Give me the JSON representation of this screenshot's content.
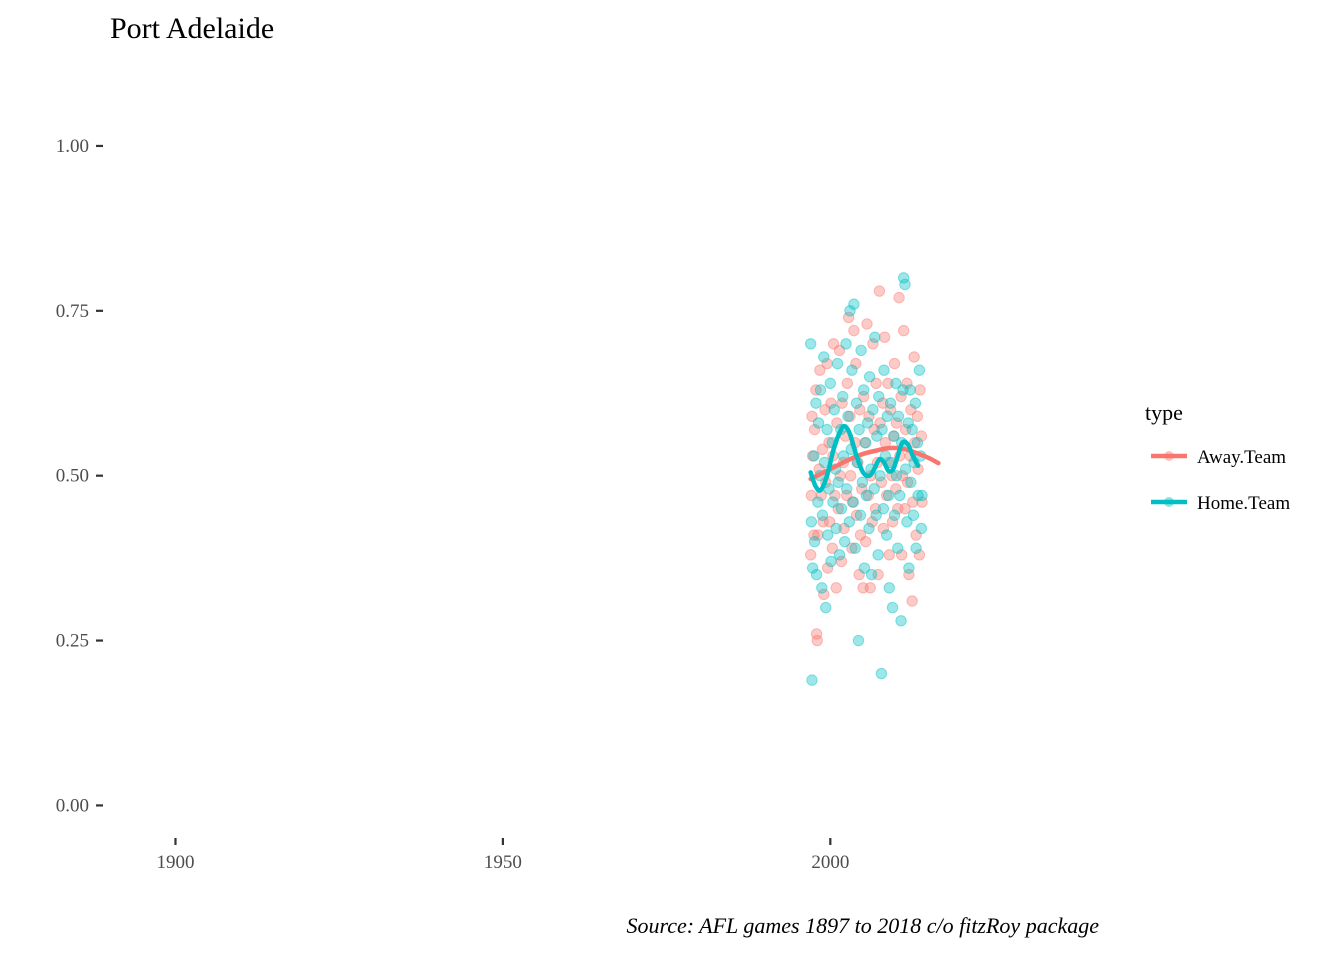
{
  "chart_data": {
    "type": "scatter",
    "title": "Port Adelaide",
    "caption": "Source: AFL games 1897 to 2018 c/o fitzRoy package",
    "xlabel": "",
    "ylabel": "",
    "xlim": [
      1890,
      2045
    ],
    "ylim": [
      -0.06,
      1.1
    ],
    "x_ticks": [
      1900,
      1950,
      2000
    ],
    "x_tick_labels": [
      "1900",
      "1950",
      "2000"
    ],
    "y_ticks": [
      0,
      0.25,
      0.5,
      0.75,
      1.0
    ],
    "y_tick_labels": [
      "0.00",
      "0.25",
      "0.50",
      "0.75",
      "1.00"
    ],
    "grid": false,
    "legend": {
      "title": "type",
      "position": "right"
    },
    "series": [
      {
        "name": "Away.Team",
        "color": "#F8766D",
        "points": [
          [
            1997.0,
            0.38
          ],
          [
            1997.1,
            0.47
          ],
          [
            1997.2,
            0.59
          ],
          [
            1997.3,
            0.53
          ],
          [
            1997.5,
            0.41
          ],
          [
            1997.6,
            0.57
          ],
          [
            1997.8,
            0.63
          ],
          [
            1997.9,
            0.26
          ],
          [
            1998.0,
            0.25
          ],
          [
            1998.1,
            0.41
          ],
          [
            1998.3,
            0.51
          ],
          [
            1998.4,
            0.66
          ],
          [
            1998.6,
            0.47
          ],
          [
            1998.8,
            0.54
          ],
          [
            1998.9,
            0.43
          ],
          [
            1999.0,
            0.32
          ],
          [
            1999.2,
            0.6
          ],
          [
            1999.3,
            0.49
          ],
          [
            1999.5,
            0.67
          ],
          [
            1999.6,
            0.36
          ],
          [
            1999.8,
            0.55
          ],
          [
            1999.9,
            0.43
          ],
          [
            2000.1,
            0.61
          ],
          [
            2000.3,
            0.39
          ],
          [
            2000.4,
            0.53
          ],
          [
            2000.5,
            0.7
          ],
          [
            2000.7,
            0.47
          ],
          [
            2000.9,
            0.33
          ],
          [
            2001.0,
            0.58
          ],
          [
            2001.2,
            0.45
          ],
          [
            2001.4,
            0.69
          ],
          [
            2001.5,
            0.5
          ],
          [
            2001.7,
            0.37
          ],
          [
            2001.8,
            0.61
          ],
          [
            2002.0,
            0.52
          ],
          [
            2002.1,
            0.42
          ],
          [
            2002.3,
            0.56
          ],
          [
            2002.5,
            0.47
          ],
          [
            2002.6,
            0.64
          ],
          [
            2002.8,
            0.74
          ],
          [
            2003.0,
            0.59
          ],
          [
            2003.1,
            0.5
          ],
          [
            2003.3,
            0.39
          ],
          [
            2003.4,
            0.46
          ],
          [
            2003.6,
            0.72
          ],
          [
            2003.8,
            0.55
          ],
          [
            2003.9,
            0.67
          ],
          [
            2004.0,
            0.44
          ],
          [
            2004.2,
            0.52
          ],
          [
            2004.4,
            0.35
          ],
          [
            2004.5,
            0.6
          ],
          [
            2004.6,
            0.41
          ],
          [
            2004.8,
            0.48
          ],
          [
            2005.0,
            0.33
          ],
          [
            2005.1,
            0.62
          ],
          [
            2005.3,
            0.55
          ],
          [
            2005.4,
            0.4
          ],
          [
            2005.6,
            0.73
          ],
          [
            2005.8,
            0.47
          ],
          [
            2005.9,
            0.59
          ],
          [
            2006.1,
            0.33
          ],
          [
            2006.2,
            0.5
          ],
          [
            2006.4,
            0.43
          ],
          [
            2006.5,
            0.7
          ],
          [
            2006.7,
            0.57
          ],
          [
            2006.9,
            0.45
          ],
          [
            2007.0,
            0.64
          ],
          [
            2007.2,
            0.52
          ],
          [
            2007.3,
            0.35
          ],
          [
            2007.5,
            0.78
          ],
          [
            2007.6,
            0.58
          ],
          [
            2007.8,
            0.49
          ],
          [
            2008.0,
            0.61
          ],
          [
            2008.1,
            0.42
          ],
          [
            2008.3,
            0.71
          ],
          [
            2008.4,
            0.55
          ],
          [
            2008.6,
            0.47
          ],
          [
            2008.8,
            0.64
          ],
          [
            2008.9,
            0.52
          ],
          [
            2009.0,
            0.38
          ],
          [
            2009.2,
            0.6
          ],
          [
            2009.4,
            0.5
          ],
          [
            2009.5,
            0.43
          ],
          [
            2009.7,
            0.56
          ],
          [
            2009.8,
            0.67
          ],
          [
            2010.0,
            0.48
          ],
          [
            2010.1,
            0.58
          ],
          [
            2010.3,
            0.45
          ],
          [
            2010.5,
            0.77
          ],
          [
            2010.6,
            0.53
          ],
          [
            2010.8,
            0.62
          ],
          [
            2010.9,
            0.38
          ],
          [
            2011.0,
            0.5
          ],
          [
            2011.2,
            0.72
          ],
          [
            2011.4,
            0.45
          ],
          [
            2011.5,
            0.57
          ],
          [
            2011.7,
            0.64
          ],
          [
            2011.8,
            0.49
          ],
          [
            2012.0,
            0.35
          ],
          [
            2012.2,
            0.53
          ],
          [
            2012.3,
            0.6
          ],
          [
            2012.5,
            0.31
          ],
          [
            2012.6,
            0.46
          ],
          [
            2012.8,
            0.68
          ],
          [
            2012.9,
            0.55
          ],
          [
            2013.1,
            0.41
          ],
          [
            2013.3,
            0.59
          ],
          [
            2013.4,
            0.51
          ],
          [
            2013.6,
            0.38
          ],
          [
            2013.7,
            0.63
          ],
          [
            2013.9,
            0.56
          ],
          [
            2014.0,
            0.46
          ]
        ],
        "smooth": [
          [
            1997,
            0.495
          ],
          [
            1999,
            0.505
          ],
          [
            2001,
            0.515
          ],
          [
            2003,
            0.525
          ],
          [
            2005,
            0.533
          ],
          [
            2007,
            0.538
          ],
          [
            2009,
            0.542
          ],
          [
            2011,
            0.541
          ],
          [
            2013,
            0.535
          ],
          [
            2015,
            0.527
          ],
          [
            2016.5,
            0.519
          ]
        ]
      },
      {
        "name": "Home.Team",
        "color": "#00BFC4",
        "points": [
          [
            1997.0,
            0.7
          ],
          [
            1997.1,
            0.43
          ],
          [
            1997.2,
            0.19
          ],
          [
            1997.3,
            0.36
          ],
          [
            1997.5,
            0.53
          ],
          [
            1997.6,
            0.4
          ],
          [
            1997.8,
            0.61
          ],
          [
            1997.9,
            0.35
          ],
          [
            1998.1,
            0.46
          ],
          [
            1998.2,
            0.58
          ],
          [
            1998.4,
            0.5
          ],
          [
            1998.5,
            0.63
          ],
          [
            1998.7,
            0.33
          ],
          [
            1998.8,
            0.44
          ],
          [
            1999.0,
            0.68
          ],
          [
            1999.1,
            0.52
          ],
          [
            1999.3,
            0.3
          ],
          [
            1999.5,
            0.57
          ],
          [
            1999.6,
            0.41
          ],
          [
            1999.8,
            0.48
          ],
          [
            2000.0,
            0.64
          ],
          [
            2000.1,
            0.37
          ],
          [
            2000.3,
            0.55
          ],
          [
            2000.4,
            0.46
          ],
          [
            2000.6,
            0.6
          ],
          [
            2000.8,
            0.51
          ],
          [
            2000.9,
            0.42
          ],
          [
            2001.1,
            0.67
          ],
          [
            2001.2,
            0.49
          ],
          [
            2001.4,
            0.38
          ],
          [
            2001.6,
            0.57
          ],
          [
            2001.7,
            0.45
          ],
          [
            2001.9,
            0.62
          ],
          [
            2002.0,
            0.53
          ],
          [
            2002.2,
            0.4
          ],
          [
            2002.4,
            0.7
          ],
          [
            2002.5,
            0.48
          ],
          [
            2002.7,
            0.59
          ],
          [
            2002.9,
            0.43
          ],
          [
            2003.0,
            0.75
          ],
          [
            2003.2,
            0.54
          ],
          [
            2003.3,
            0.66
          ],
          [
            2003.5,
            0.46
          ],
          [
            2003.6,
            0.76
          ],
          [
            2003.8,
            0.39
          ],
          [
            2004.0,
            0.61
          ],
          [
            2004.1,
            0.52
          ],
          [
            2004.3,
            0.25
          ],
          [
            2004.4,
            0.57
          ],
          [
            2004.6,
            0.44
          ],
          [
            2004.7,
            0.69
          ],
          [
            2004.9,
            0.49
          ],
          [
            2005.1,
            0.63
          ],
          [
            2005.2,
            0.36
          ],
          [
            2005.4,
            0.55
          ],
          [
            2005.5,
            0.47
          ],
          [
            2005.7,
            0.58
          ],
          [
            2005.9,
            0.42
          ],
          [
            2006.0,
            0.65
          ],
          [
            2006.2,
            0.51
          ],
          [
            2006.3,
            0.35
          ],
          [
            2006.5,
            0.6
          ],
          [
            2006.7,
            0.48
          ],
          [
            2006.8,
            0.71
          ],
          [
            2007.0,
            0.44
          ],
          [
            2007.1,
            0.56
          ],
          [
            2007.3,
            0.38
          ],
          [
            2007.4,
            0.62
          ],
          [
            2007.6,
            0.5
          ],
          [
            2007.8,
            0.2
          ],
          [
            2007.9,
            0.57
          ],
          [
            2008.1,
            0.45
          ],
          [
            2008.2,
            0.66
          ],
          [
            2008.4,
            0.53
          ],
          [
            2008.6,
            0.41
          ],
          [
            2008.7,
            0.59
          ],
          [
            2008.9,
            0.47
          ],
          [
            2009.0,
            0.33
          ],
          [
            2009.2,
            0.61
          ],
          [
            2009.3,
            0.52
          ],
          [
            2009.5,
            0.3
          ],
          [
            2009.7,
            0.56
          ],
          [
            2009.8,
            0.44
          ],
          [
            2010.0,
            0.64
          ],
          [
            2010.1,
            0.5
          ],
          [
            2010.3,
            0.39
          ],
          [
            2010.4,
            0.59
          ],
          [
            2010.6,
            0.47
          ],
          [
            2010.8,
            0.28
          ],
          [
            2010.9,
            0.55
          ],
          [
            2011.1,
            0.63
          ],
          [
            2011.2,
            0.8
          ],
          [
            2011.4,
            0.79
          ],
          [
            2011.5,
            0.51
          ],
          [
            2011.7,
            0.43
          ],
          [
            2011.9,
            0.58
          ],
          [
            2012.0,
            0.36
          ],
          [
            2012.2,
            0.63
          ],
          [
            2012.3,
            0.49
          ],
          [
            2012.5,
            0.57
          ],
          [
            2012.7,
            0.44
          ],
          [
            2012.8,
            0.52
          ],
          [
            2013.0,
            0.61
          ],
          [
            2013.1,
            0.39
          ],
          [
            2013.3,
            0.55
          ],
          [
            2013.4,
            0.47
          ],
          [
            2013.6,
            0.66
          ],
          [
            2013.8,
            0.53
          ],
          [
            2013.9,
            0.42
          ],
          [
            2014.0,
            0.47
          ]
        ],
        "smooth": [
          [
            1997,
            0.505
          ],
          [
            1997.7,
            0.485
          ],
          [
            1998.5,
            0.478
          ],
          [
            1999.5,
            0.5
          ],
          [
            2000.5,
            0.54
          ],
          [
            2001.5,
            0.567
          ],
          [
            2002.2,
            0.575
          ],
          [
            2003,
            0.563
          ],
          [
            2004,
            0.53
          ],
          [
            2005,
            0.505
          ],
          [
            2006,
            0.5
          ],
          [
            2006.8,
            0.512
          ],
          [
            2007.5,
            0.525
          ],
          [
            2008.2,
            0.52
          ],
          [
            2008.9,
            0.507
          ],
          [
            2009.6,
            0.51
          ],
          [
            2010.3,
            0.53
          ],
          [
            2011,
            0.55
          ],
          [
            2011.8,
            0.548
          ],
          [
            2012.6,
            0.53
          ],
          [
            2013.4,
            0.515
          ]
        ]
      }
    ]
  }
}
